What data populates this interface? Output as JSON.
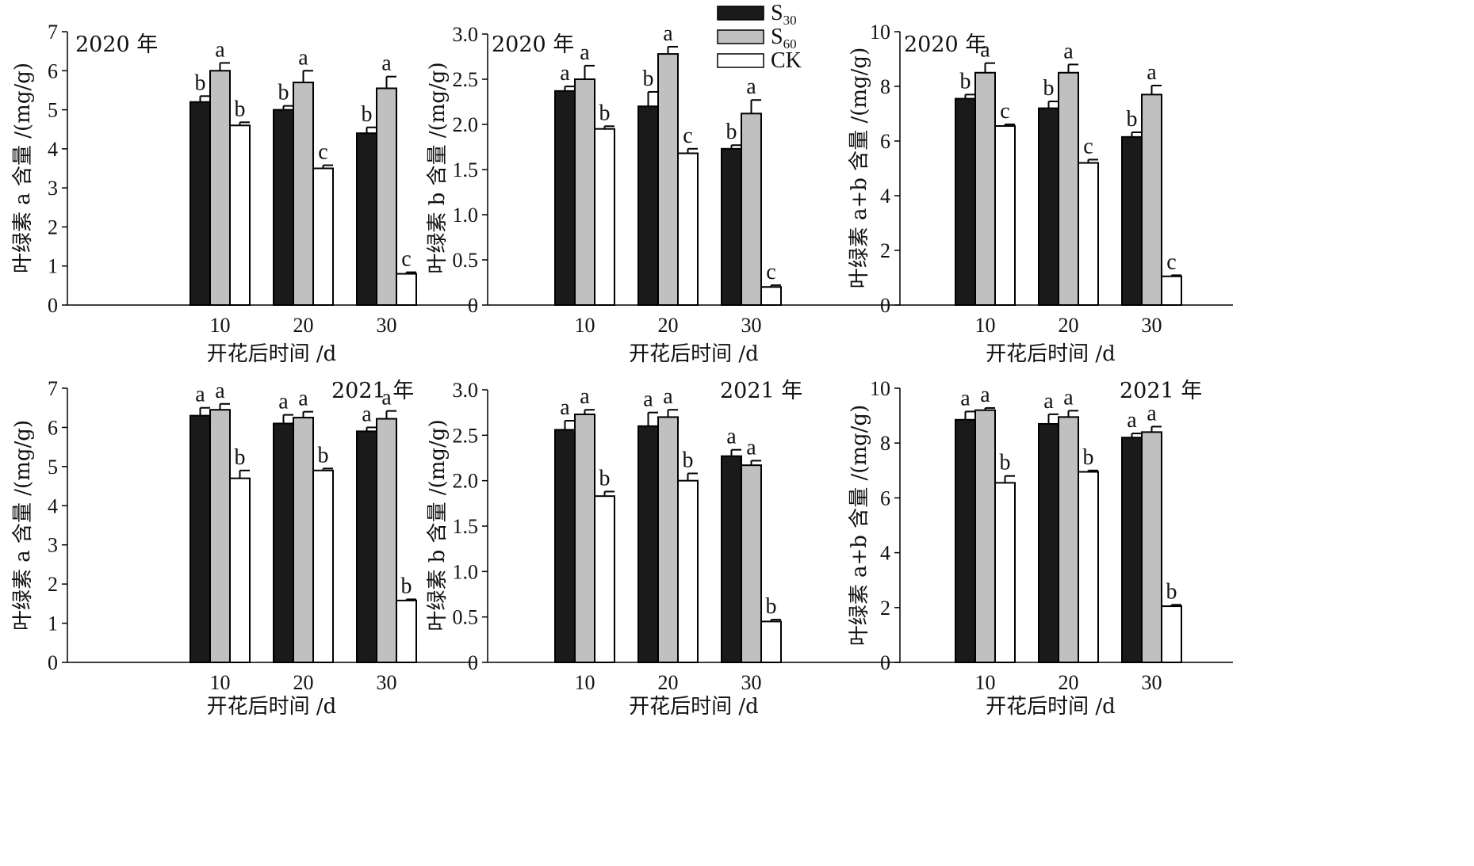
{
  "figure": {
    "legend": {
      "items": [
        {
          "name": "S",
          "sub": "30",
          "color": "#1a1a1a"
        },
        {
          "name": "S",
          "sub": "60",
          "color": "#c0c0c0"
        },
        {
          "name": "CK",
          "sub": "",
          "color": "#ffffff"
        }
      ]
    }
  },
  "chart_data": [
    {
      "type": "bar",
      "panel": "top-left",
      "year_label": "2020 年",
      "xlabel": "开花后时间 /d",
      "ylabel": "叶绿素 a 含量 /(mg/g)",
      "categories": [
        "10",
        "20",
        "30"
      ],
      "ylim": [
        0,
        7
      ],
      "yticks": [
        "0",
        "1",
        "2",
        "3",
        "4",
        "5",
        "6",
        "7"
      ],
      "series": [
        {
          "name": "S30",
          "values": [
            5.2,
            5.0,
            4.4
          ],
          "errors": [
            0.15,
            0.1,
            0.15
          ],
          "labels": [
            "b",
            "b",
            "b"
          ]
        },
        {
          "name": "S60",
          "values": [
            6.0,
            5.7,
            5.55
          ],
          "errors": [
            0.2,
            0.3,
            0.3
          ],
          "labels": [
            "a",
            "a",
            "a"
          ]
        },
        {
          "name": "CK",
          "values": [
            4.6,
            3.5,
            0.8
          ],
          "errors": [
            0.08,
            0.08,
            0.04
          ],
          "labels": [
            "b",
            "c",
            "c"
          ]
        }
      ]
    },
    {
      "type": "bar",
      "panel": "top-middle",
      "year_label": "2020 年",
      "xlabel": "开花后时间 /d",
      "ylabel": "叶绿素 b 含量 /(mg/g)",
      "categories": [
        "10",
        "20",
        "30"
      ],
      "ylim": [
        0,
        3.0
      ],
      "yticks": [
        "0",
        "0.5",
        "1.0",
        "1.5",
        "2.0",
        "2.5",
        "3.0"
      ],
      "series": [
        {
          "name": "S30",
          "values": [
            2.37,
            2.2,
            1.73
          ],
          "errors": [
            0.05,
            0.16,
            0.04
          ],
          "labels": [
            "a",
            "b",
            "b"
          ]
        },
        {
          "name": "S60",
          "values": [
            2.5,
            2.78,
            2.12
          ],
          "errors": [
            0.15,
            0.08,
            0.15
          ],
          "labels": [
            "a",
            "a",
            "a"
          ]
        },
        {
          "name": "CK",
          "values": [
            1.95,
            1.68,
            0.2
          ],
          "errors": [
            0.03,
            0.05,
            0.02
          ],
          "labels": [
            "b",
            "c",
            "c"
          ]
        }
      ]
    },
    {
      "type": "bar",
      "panel": "top-right",
      "year_label": "2020 年",
      "xlabel": "开花后时间 /d",
      "ylabel": "叶绿素 a+b 含量 /(mg/g)",
      "categories": [
        "10",
        "20",
        "30"
      ],
      "ylim": [
        0,
        10
      ],
      "yticks": [
        "0",
        "2",
        "4",
        "6",
        "8",
        "10"
      ],
      "series": [
        {
          "name": "S30",
          "values": [
            7.55,
            7.2,
            6.15
          ],
          "errors": [
            0.15,
            0.25,
            0.17
          ],
          "labels": [
            "b",
            "b",
            "b"
          ]
        },
        {
          "name": "S60",
          "values": [
            8.5,
            8.5,
            7.7
          ],
          "errors": [
            0.35,
            0.3,
            0.33
          ],
          "labels": [
            "a",
            "a",
            "a"
          ]
        },
        {
          "name": "CK",
          "values": [
            6.55,
            5.2,
            1.05
          ],
          "errors": [
            0.06,
            0.12,
            0.04
          ],
          "labels": [
            "c",
            "c",
            "c"
          ]
        }
      ]
    },
    {
      "type": "bar",
      "panel": "bottom-left",
      "year_label": "2021 年",
      "xlabel": "开花后时间 /d",
      "ylabel": "叶绿素 a 含量 /(mg/g)",
      "categories": [
        "10",
        "20",
        "30"
      ],
      "ylim": [
        0,
        7
      ],
      "yticks": [
        "0",
        "1",
        "2",
        "3",
        "4",
        "5",
        "6",
        "7"
      ],
      "series": [
        {
          "name": "S30",
          "values": [
            6.3,
            6.1,
            5.9
          ],
          "errors": [
            0.2,
            0.22,
            0.1
          ],
          "labels": [
            "a",
            "a",
            "a"
          ]
        },
        {
          "name": "S60",
          "values": [
            6.45,
            6.25,
            6.22
          ],
          "errors": [
            0.15,
            0.15,
            0.2
          ],
          "labels": [
            "a",
            "a",
            "a"
          ]
        },
        {
          "name": "CK",
          "values": [
            4.7,
            4.9,
            1.58
          ],
          "errors": [
            0.2,
            0.05,
            0.03
          ],
          "labels": [
            "b",
            "b",
            "b"
          ]
        }
      ]
    },
    {
      "type": "bar",
      "panel": "bottom-middle",
      "year_label": "2021 年",
      "xlabel": "开花后时间 /d",
      "ylabel": "叶绿素 b 含量 /(mg/g)",
      "categories": [
        "10",
        "20",
        "30"
      ],
      "ylim": [
        0,
        3.0
      ],
      "yticks": [
        "0",
        "0.5",
        "1.0",
        "1.5",
        "2.0",
        "2.5",
        "3.0"
      ],
      "series": [
        {
          "name": "S30",
          "values": [
            2.56,
            2.6,
            2.27
          ],
          "errors": [
            0.1,
            0.15,
            0.07
          ],
          "labels": [
            "a",
            "a",
            "a"
          ]
        },
        {
          "name": "S60",
          "values": [
            2.73,
            2.7,
            2.17
          ],
          "errors": [
            0.05,
            0.08,
            0.05
          ],
          "labels": [
            "a",
            "a",
            "a"
          ]
        },
        {
          "name": "CK",
          "values": [
            1.83,
            2.0,
            0.45
          ],
          "errors": [
            0.05,
            0.08,
            0.02
          ],
          "labels": [
            "b",
            "b",
            "b"
          ]
        }
      ]
    },
    {
      "type": "bar",
      "panel": "bottom-right",
      "year_label": "2021 年",
      "xlabel": "开花后时间 /d",
      "ylabel": "叶绿素 a+b 含量 /(mg/g)",
      "categories": [
        "10",
        "20",
        "30"
      ],
      "ylim": [
        0,
        10
      ],
      "yticks": [
        "0",
        "2",
        "4",
        "6",
        "8",
        "10"
      ],
      "series": [
        {
          "name": "S30",
          "values": [
            8.85,
            8.7,
            8.2
          ],
          "errors": [
            0.3,
            0.35,
            0.15
          ],
          "labels": [
            "a",
            "a",
            "a"
          ]
        },
        {
          "name": "S60",
          "values": [
            9.2,
            8.95,
            8.4
          ],
          "errors": [
            0.08,
            0.23,
            0.2
          ],
          "labels": [
            "a",
            "a",
            "a"
          ]
        },
        {
          "name": "CK",
          "values": [
            6.55,
            6.95,
            2.05
          ],
          "errors": [
            0.25,
            0.05,
            0.05
          ],
          "labels": [
            "b",
            "b",
            "b"
          ]
        }
      ]
    }
  ]
}
